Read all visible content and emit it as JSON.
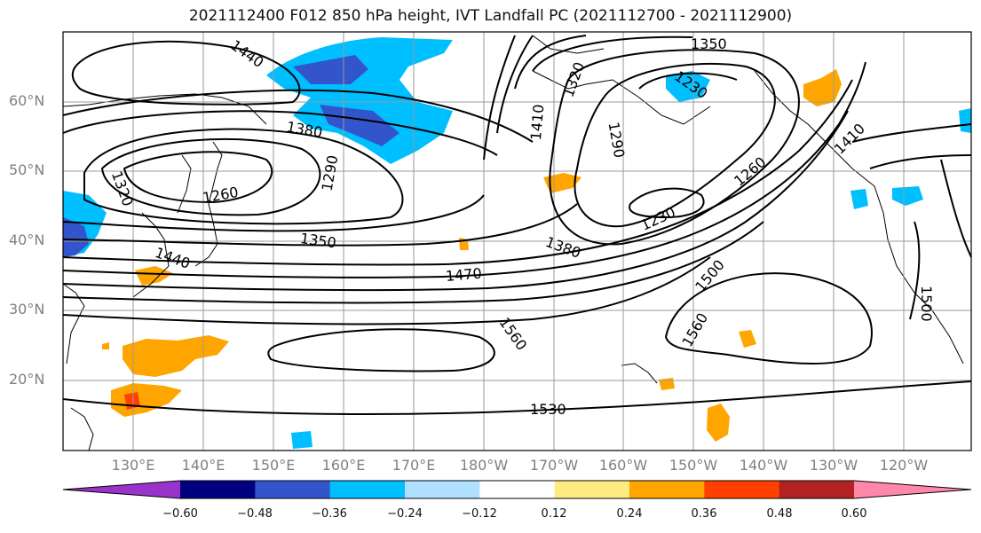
{
  "title": "2021112400 F012 850 hPa height, IVT Landfall PC (2021112700 - 2021112900)",
  "lat_labels": [
    "60°N",
    "50°N",
    "40°N",
    "30°N",
    "20°N"
  ],
  "lon_labels": [
    "130°E",
    "140°E",
    "150°E",
    "160°E",
    "170°E",
    "180°W",
    "170°W",
    "160°W",
    "150°W",
    "140°W",
    "130°W",
    "120°W"
  ],
  "contour_labels": [
    "1440",
    "1350",
    "1320",
    "1230",
    "1380",
    "1410",
    "1290",
    "1320",
    "1260",
    "1290",
    "1410",
    "1260",
    "1230",
    "1350",
    "1380",
    "1440",
    "1470",
    "1500",
    "1560",
    "1560",
    "1530",
    "1500"
  ],
  "colorbar": {
    "ticks": [
      "−0.60",
      "−0.48",
      "−0.36",
      "−0.24",
      "−0.12",
      "0.12",
      "0.24",
      "0.36",
      "0.48",
      "0.60"
    ],
    "colors": [
      "#9933cc",
      "#000080",
      "#3355cc",
      "#00bfff",
      "#b0e0ff",
      "#ffffff",
      "#ffeb80",
      "#ffa500",
      "#ff4000",
      "#b22222",
      "#ff88aa"
    ]
  }
}
